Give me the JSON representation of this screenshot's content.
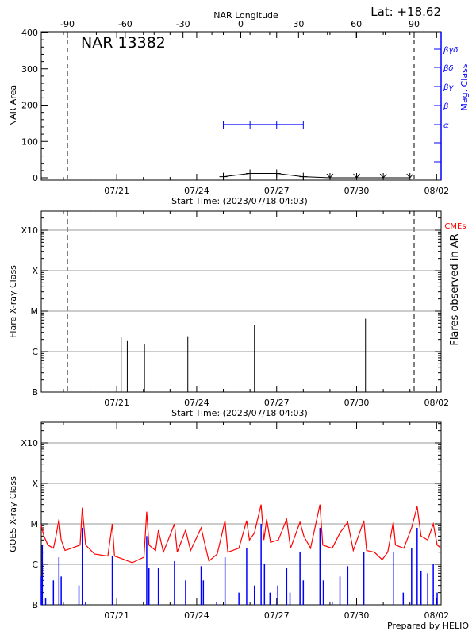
{
  "chart_data": [
    {
      "type": "line",
      "title": "NAR 13382",
      "latitude_label": "Lat: +18.62",
      "top_axis_label": "NAR Longitude",
      "top_axis_ticks": [
        -90,
        -60,
        -30,
        0,
        30,
        60,
        90
      ],
      "xlabel": "Start Time: (2023/07/18 04:03)",
      "x_tick_labels": [
        "07/21",
        "07/24",
        "07/27",
        "07/30",
        "08/02"
      ],
      "xlim": [
        "07/18 04:03",
        "08/02 04:03"
      ],
      "ylabel": "NAR Area",
      "ylim": [
        0,
        400
      ],
      "y_ticks": [
        0,
        100,
        200,
        300,
        400
      ],
      "y2label": "Mag. Class",
      "y2_tick_labels": [
        "α",
        "β",
        "βγ",
        "βδ",
        "βγδ"
      ],
      "limb_longitudes": [
        -90,
        90
      ],
      "area_series": {
        "x": [
          "07/25 00:00",
          "07/26 00:00",
          "07/27 00:00",
          "07/28 00:00",
          "07/29 00:00",
          "07/30 00:00",
          "07/31 00:00",
          "08/01 00:00"
        ],
        "values": [
          3,
          12,
          12,
          3,
          0,
          0,
          0,
          0
        ],
        "color": "#000000"
      },
      "mag_class_series": {
        "x": [
          "07/25 00:00",
          "07/26 00:00",
          "07/27 00:00",
          "07/28 00:00"
        ],
        "values": [
          "α",
          "α",
          "α",
          "α"
        ],
        "color": "#0000ff"
      }
    },
    {
      "type": "bar",
      "xlabel": "Start Time: (2023/07/18 04:03)",
      "x_tick_labels": [
        "07/21",
        "07/24",
        "07/27",
        "07/30",
        "08/02"
      ],
      "ylabel": "Flare X-ray Class",
      "y_tick_labels": [
        "B",
        "C",
        "M",
        "X",
        "X10"
      ],
      "y_scale": "log",
      "y2label": "Flares observed in AR",
      "cme_label": "CMEs",
      "cme_color": "#ff0000",
      "grid": true,
      "flares": {
        "x": [
          "07/21 04:00",
          "07/21 09:30",
          "07/22 01:00",
          "07/23 16:00",
          "07/26 04:00",
          "07/30 08:00"
        ],
        "class": [
          "C2.3",
          "C1.9",
          "C1.5",
          "C2.4",
          "C4.5",
          "C6.5"
        ],
        "values_c_units": [
          2.3,
          1.9,
          1.5,
          2.4,
          4.5,
          6.5
        ]
      }
    },
    {
      "type": "line",
      "xlabel": "",
      "x_tick_labels": [
        "07/21",
        "07/24",
        "07/27",
        "07/30",
        "08/02"
      ],
      "ylabel": "GOES X-ray Class",
      "y_tick_labels": [
        "B",
        "C",
        "M",
        "X",
        "X10"
      ],
      "y_scale": "log",
      "grid": true,
      "footer": "Prepared by HELIO",
      "series": [
        {
          "color": "#ff0000",
          "x": [
            "07/18 04:03",
            "07/18 06:30",
            "07/18 10:00",
            "07/18 15:00",
            "07/18 17:00",
            "07/18 20:00",
            "07/18 22:00",
            "07/19 01:30",
            "07/19 09:00",
            "07/19 15:00",
            "07/19 17:00",
            "07/19 20:00",
            "07/20 04:00",
            "07/20 16:00",
            "07/20 20:00",
            "07/20 22:00",
            "07/21 04:00",
            "07/21 14:00",
            "07/22 00:30",
            "07/22 03:00",
            "07/22 05:00",
            "07/22 11:00",
            "07/22 13:30",
            "07/22 18:00",
            "07/23 04:00",
            "07/23 06:30",
            "07/23 14:00",
            "07/23 18:30",
            "07/24 04:00",
            "07/24 06:30",
            "07/24 11:00",
            "07/24 18:30",
            "07/25 01:30",
            "07/25 04:00",
            "07/25 14:00",
            "07/25 21:00",
            "07/25 23:30",
            "07/26 04:00",
            "07/26 10:00",
            "07/26 12:30",
            "07/26 15:00",
            "07/26 18:30",
            "07/27 01:30",
            "07/27 09:00",
            "07/27 12:30",
            "07/27 21:00",
            "07/28 00:30",
            "07/28 06:30",
            "07/28 15:00",
            "07/28 17:30",
            "07/29 02:00",
            "07/29 09:00",
            "07/29 16:00",
            "07/29 21:00",
            "07/30 06:30",
            "07/30 09:00",
            "07/30 16:00",
            "07/30 23:00",
            "07/31 04:00",
            "07/31 09:00",
            "07/31 11:00",
            "07/31 18:30",
            "08/01 01:30",
            "08/01 06:30",
            "08/01 10:00",
            "08/01 16:00",
            "08/01 21:00",
            "08/02 00:30",
            "08/02 04:00"
          ],
          "values_c_units": [
            9,
            5,
            3,
            2.5,
            4.5,
            13,
            4,
            2.2,
            2.6,
            3,
            25,
            3,
            1.8,
            1.6,
            10,
            1.6,
            1.4,
            1.1,
            1.5,
            20,
            3,
            2.2,
            7,
            2,
            10,
            2,
            7,
            2.2,
            8,
            4,
            1.2,
            1.8,
            12,
            2,
            2.5,
            12,
            4,
            6,
            30,
            4,
            13,
            3.5,
            4,
            13,
            2.5,
            11,
            5,
            2.5,
            30,
            3,
            2.5,
            6,
            11,
            2.2,
            12,
            2.2,
            2,
            1.3,
            2,
            11,
            3,
            2.5,
            8,
            27,
            5,
            4,
            10,
            3,
            2.5
          ]
        },
        {
          "color": "#0000ff",
          "x": [
            "07/18 04:03",
            "07/18 05:00",
            "07/18 08:00",
            "07/18 15:00",
            "07/18 20:00",
            "07/18 22:00",
            "07/19 14:00",
            "07/19 17:00",
            "07/19 20:00",
            "07/20 20:00",
            "07/21 04:00",
            "07/22 03:00",
            "07/22 05:00",
            "07/22 13:30",
            "07/23 04:00",
            "07/23 14:00",
            "07/24 04:00",
            "07/24 06:00",
            "07/24 18:00",
            "07/25 01:30",
            "07/25 14:00",
            "07/25 21:00",
            "07/26 04:00",
            "07/26 10:00",
            "07/26 13:00",
            "07/26 18:00",
            "07/27 01:00",
            "07/27 09:00",
            "07/27 12:00",
            "07/27 21:00",
            "07/28 00:00",
            "07/28 15:00",
            "07/28 18:00",
            "07/29 02:00",
            "07/29 09:00",
            "07/29 16:00",
            "07/30 06:30",
            "07/30 16:00",
            "07/31 04:00",
            "07/31 09:00",
            "07/31 18:00",
            "08/01 01:30",
            "08/01 06:30",
            "08/01 10:00",
            "08/01 16:00",
            "08/01 21:00",
            "08/02 00:30"
          ],
          "values_c_units": [
            0.5,
            3,
            0.15,
            0.4,
            1.5,
            0.5,
            0.3,
            8,
            0.12,
            1.6,
            0.1,
            5,
            0.8,
            0.8,
            1.2,
            0.4,
            0.9,
            0.4,
            0.12,
            1.5,
            0.2,
            2.5,
            0.3,
            10,
            1,
            0.2,
            0.3,
            0.8,
            0.2,
            2,
            0.4,
            8,
            0.4,
            0.12,
            0.5,
            0.9,
            2,
            0.1,
            0.1,
            2,
            0.2,
            2.5,
            8,
            0.7,
            0.6,
            1,
            0.2
          ]
        }
      ]
    }
  ]
}
